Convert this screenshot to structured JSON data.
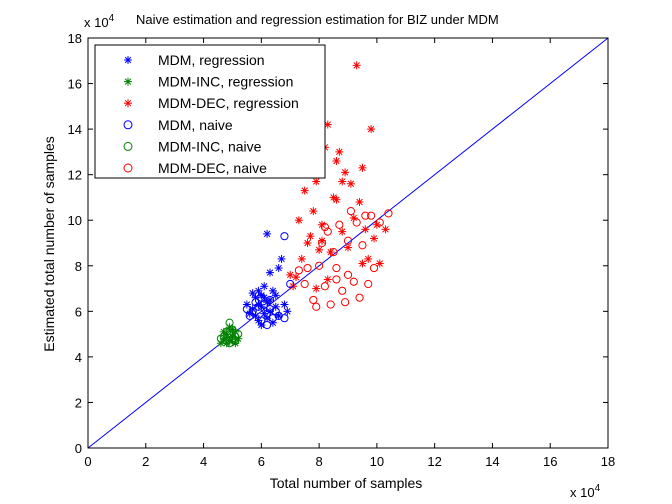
{
  "chart_data": {
    "type": "scatter",
    "title": "Naive estimation and regression estimation for BIZ under MDM",
    "xlabel": "Total number of samples",
    "ylabel": "Estimated total number of samples",
    "x_exponent_label": "x 10",
    "y_exponent_label": "x 10",
    "exponent": "4",
    "xlim": [
      0,
      18
    ],
    "ylim": [
      0,
      18
    ],
    "x_ticks": [
      "0",
      "2",
      "4",
      "6",
      "8",
      "10",
      "12",
      "14",
      "16",
      "18"
    ],
    "y_ticks": [
      "0",
      "2",
      "4",
      "6",
      "8",
      "10",
      "12",
      "14",
      "16",
      "18"
    ],
    "grid": false,
    "legend_position": "top-left",
    "reference_line": {
      "from": [
        0,
        0
      ],
      "to": [
        18,
        18
      ],
      "color": "#0000ff"
    },
    "series": [
      {
        "name": "MDM, regression",
        "marker": "asterisk",
        "color": "#0000ff",
        "points": [
          [
            5.7,
            6.1
          ],
          [
            5.8,
            6.6
          ],
          [
            5.9,
            5.6
          ],
          [
            6.0,
            6.2
          ],
          [
            6.1,
            5.9
          ],
          [
            6.2,
            6.4
          ],
          [
            6.3,
            6.0
          ],
          [
            6.4,
            5.5
          ],
          [
            5.6,
            5.9
          ],
          [
            5.9,
            6.9
          ],
          [
            6.1,
            7.1
          ],
          [
            6.2,
            9.4
          ],
          [
            6.3,
            7.7
          ],
          [
            6.6,
            7.9
          ],
          [
            6.7,
            8.3
          ],
          [
            6.5,
            6.7
          ],
          [
            6.8,
            6.3
          ],
          [
            5.5,
            6.3
          ],
          [
            6.0,
            5.4
          ],
          [
            6.4,
            6.9
          ],
          [
            5.8,
            5.8
          ],
          [
            6.6,
            5.8
          ],
          [
            6.1,
            6.6
          ],
          [
            5.7,
            6.8
          ],
          [
            6.9,
            6.0
          ],
          [
            6.2,
            5.7
          ],
          [
            6.3,
            6.5
          ],
          [
            6.0,
            6.7
          ],
          [
            5.9,
            6.3
          ],
          [
            6.5,
            6.2
          ]
        ]
      },
      {
        "name": "MDM-INC, regression",
        "marker": "asterisk",
        "color": "#008000",
        "points": [
          [
            4.7,
            4.8
          ],
          [
            4.8,
            5.0
          ],
          [
            4.9,
            4.7
          ],
          [
            5.0,
            4.9
          ],
          [
            5.1,
            5.1
          ],
          [
            4.6,
            4.6
          ],
          [
            4.9,
            5.3
          ],
          [
            5.2,
            4.8
          ],
          [
            4.8,
            4.6
          ],
          [
            5.0,
            5.2
          ],
          [
            4.7,
            5.1
          ],
          [
            5.1,
            4.6
          ]
        ]
      },
      {
        "name": "MDM-DEC, regression",
        "marker": "asterisk",
        "color": "#ff0000",
        "points": [
          [
            7.2,
            7.5
          ],
          [
            7.4,
            8.3
          ],
          [
            7.6,
            9.0
          ],
          [
            7.8,
            10.4
          ],
          [
            7.9,
            11.7
          ],
          [
            8.0,
            12.4
          ],
          [
            8.2,
            13.2
          ],
          [
            8.3,
            14.2
          ],
          [
            8.5,
            11.0
          ],
          [
            8.7,
            13.0
          ],
          [
            8.9,
            12.1
          ],
          [
            9.1,
            11.6
          ],
          [
            9.3,
            16.8
          ],
          [
            9.5,
            12.3
          ],
          [
            9.8,
            14.0
          ],
          [
            8.1,
            9.8
          ],
          [
            8.4,
            8.6
          ],
          [
            8.6,
            10.9
          ],
          [
            9.0,
            8.8
          ],
          [
            9.2,
            10.1
          ],
          [
            9.6,
            9.6
          ],
          [
            10.0,
            9.8
          ],
          [
            10.3,
            9.6
          ],
          [
            7.3,
            10.0
          ],
          [
            7.7,
            9.3
          ],
          [
            7.5,
            11.3
          ],
          [
            8.8,
            11.7
          ],
          [
            9.4,
            10.8
          ],
          [
            7.1,
            7.1
          ],
          [
            8.0,
            8.7
          ],
          [
            8.3,
            7.4
          ],
          [
            9.7,
            8.3
          ],
          [
            10.1,
            8.1
          ],
          [
            8.6,
            12.6
          ],
          [
            9.9,
            9.2
          ],
          [
            7.0,
            7.6
          ],
          [
            7.9,
            7.0
          ],
          [
            8.1,
            9.1
          ],
          [
            8.8,
            9.5
          ],
          [
            9.5,
            8.1
          ]
        ]
      },
      {
        "name": "MDM, naive",
        "marker": "circle",
        "color": "#0000ff",
        "points": [
          [
            5.7,
            6.0
          ],
          [
            5.9,
            6.2
          ],
          [
            6.0,
            5.6
          ],
          [
            6.1,
            6.3
          ],
          [
            6.2,
            5.9
          ],
          [
            6.3,
            6.1
          ],
          [
            6.4,
            5.7
          ],
          [
            5.8,
            6.4
          ],
          [
            6.0,
            6.6
          ],
          [
            6.5,
            6.0
          ],
          [
            6.6,
            5.8
          ],
          [
            5.6,
            5.8
          ],
          [
            6.8,
            5.7
          ],
          [
            6.8,
            9.3
          ],
          [
            7.0,
            7.2
          ],
          [
            6.2,
            5.4
          ],
          [
            5.5,
            6.1
          ],
          [
            6.3,
            6.5
          ]
        ]
      },
      {
        "name": "MDM-INC, naive",
        "marker": "circle",
        "color": "#008000",
        "points": [
          [
            4.7,
            4.9
          ],
          [
            4.8,
            4.7
          ],
          [
            4.9,
            5.0
          ],
          [
            5.0,
            4.8
          ],
          [
            5.1,
            4.9
          ],
          [
            4.8,
            5.1
          ],
          [
            5.0,
            5.2
          ],
          [
            4.6,
            4.8
          ],
          [
            5.2,
            5.0
          ],
          [
            4.9,
            4.6
          ],
          [
            4.9,
            5.5
          ],
          [
            5.1,
            4.7
          ]
        ]
      },
      {
        "name": "MDM-DEC, naive",
        "marker": "circle",
        "color": "#ff0000",
        "points": [
          [
            7.5,
            7.2
          ],
          [
            7.8,
            6.5
          ],
          [
            8.0,
            8.0
          ],
          [
            8.2,
            7.1
          ],
          [
            8.4,
            6.3
          ],
          [
            8.6,
            7.4
          ],
          [
            8.8,
            6.9
          ],
          [
            9.0,
            7.6
          ],
          [
            9.2,
            7.3
          ],
          [
            9.4,
            6.6
          ],
          [
            9.7,
            7.2
          ],
          [
            9.9,
            7.9
          ],
          [
            10.1,
            9.9
          ],
          [
            10.4,
            10.3
          ],
          [
            8.1,
            9.0
          ],
          [
            8.3,
            9.5
          ],
          [
            8.5,
            8.6
          ],
          [
            8.7,
            9.8
          ],
          [
            9.0,
            9.1
          ],
          [
            9.3,
            9.9
          ],
          [
            9.6,
            10.2
          ],
          [
            9.8,
            10.2
          ],
          [
            7.6,
            7.9
          ],
          [
            7.9,
            6.2
          ],
          [
            8.9,
            6.4
          ],
          [
            8.2,
            9.7
          ],
          [
            7.3,
            7.8
          ],
          [
            9.5,
            8.9
          ],
          [
            8.6,
            7.9
          ],
          [
            9.1,
            10.4
          ]
        ]
      }
    ]
  }
}
